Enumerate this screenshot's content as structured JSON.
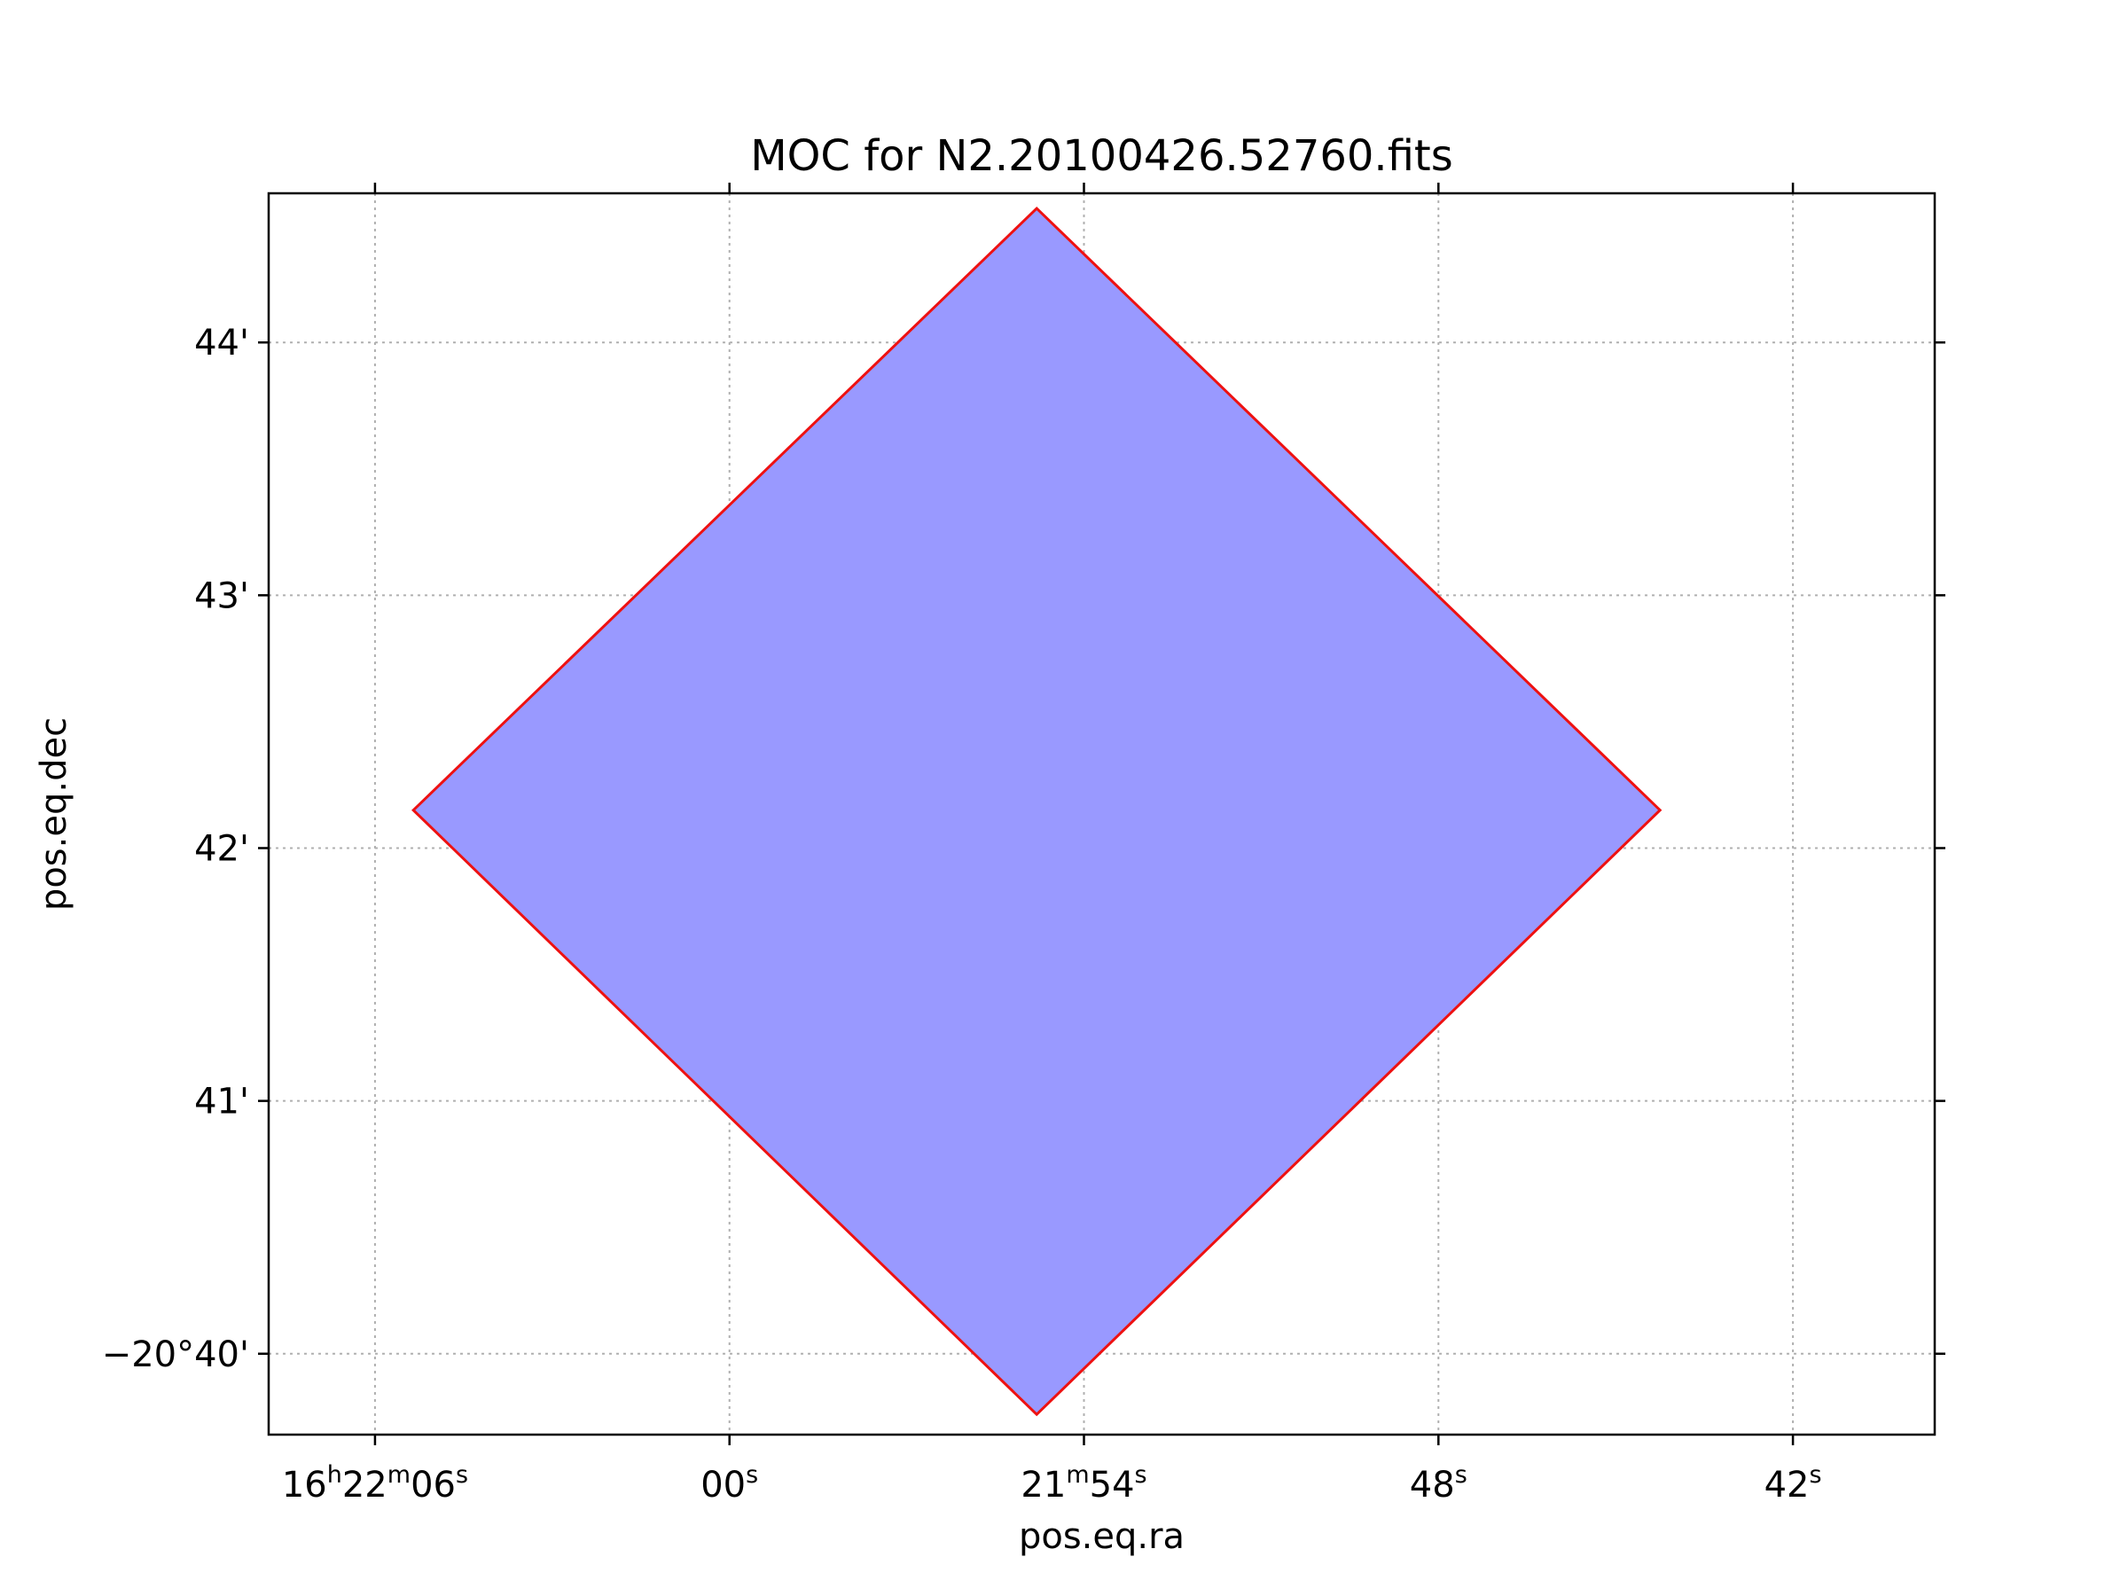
{
  "chart_data": {
    "type": "polygon",
    "title": "MOC for N2.20100426.52760.fits",
    "xlabel": "pos.eq.ra",
    "ylabel": "pos.eq.dec",
    "x_unit": "RA seconds (16h21m/22m)",
    "y_unit": "Dec arcminutes below -20°",
    "xlim": [
      67.8,
      39.6
    ],
    "ylim": [
      44.59,
      39.68
    ],
    "xticks": [
      {
        "value": 66,
        "parts": [
          [
            "16",
            "n"
          ],
          [
            "h",
            "s"
          ],
          [
            "22",
            "n"
          ],
          [
            "m",
            "s"
          ],
          [
            "06",
            "n"
          ],
          [
            "s",
            "s"
          ]
        ]
      },
      {
        "value": 60,
        "parts": [
          [
            "00",
            "n"
          ],
          [
            "s",
            "s"
          ]
        ]
      },
      {
        "value": 54,
        "parts": [
          [
            "21",
            "n"
          ],
          [
            "m",
            "s"
          ],
          [
            "54",
            "n"
          ],
          [
            "s",
            "s"
          ]
        ]
      },
      {
        "value": 48,
        "parts": [
          [
            "48",
            "n"
          ],
          [
            "s",
            "s"
          ]
        ]
      },
      {
        "value": 42,
        "parts": [
          [
            "42",
            "n"
          ],
          [
            "s",
            "s"
          ]
        ]
      }
    ],
    "yticks": [
      {
        "value": 40,
        "label": "−20°40'"
      },
      {
        "value": 41,
        "label": "41'"
      },
      {
        "value": 42,
        "label": "42'"
      },
      {
        "value": 43,
        "label": "43'"
      },
      {
        "value": 44,
        "label": "44'"
      }
    ],
    "grid": true,
    "polygon": {
      "name": "MOC",
      "points": [
        [
          54.8,
          39.76
        ],
        [
          44.25,
          42.15
        ],
        [
          54.8,
          44.53
        ],
        [
          65.35,
          42.15
        ]
      ],
      "fill": "#9999ff",
      "edge": "#ee1111"
    }
  }
}
